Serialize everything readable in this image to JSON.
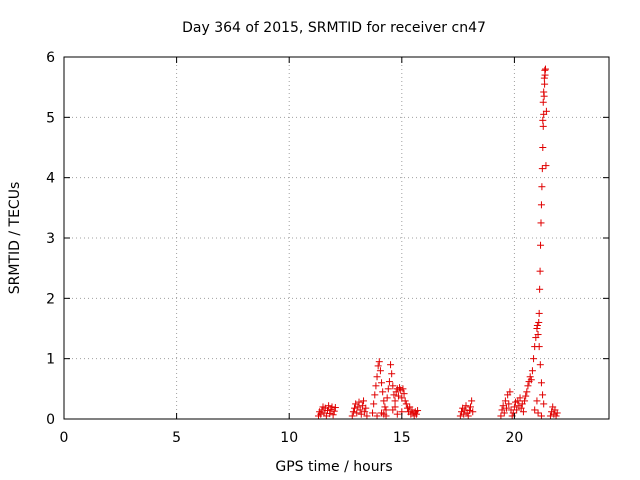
{
  "chart_data": {
    "type": "scatter",
    "title": "Day 364 of 2015, SRMTID for receiver cn47",
    "xlabel": "GPS time / hours",
    "ylabel": "SRMTID / TECUs",
    "xlim": [
      0,
      24.2
    ],
    "ylim": [
      0,
      6
    ],
    "xticks": [
      0,
      5,
      10,
      15,
      20
    ],
    "yticks": [
      0,
      1,
      2,
      3,
      4,
      5,
      6
    ],
    "grid": true,
    "marker": "+",
    "color": "#e00000",
    "series": [
      {
        "name": "SRMTID",
        "points": [
          [
            11.3,
            0.05
          ],
          [
            11.35,
            0.12
          ],
          [
            11.4,
            0.08
          ],
          [
            11.45,
            0.15
          ],
          [
            11.5,
            0.2
          ],
          [
            11.55,
            0.1
          ],
          [
            11.6,
            0.18
          ],
          [
            11.65,
            0.05
          ],
          [
            11.7,
            0.14
          ],
          [
            11.75,
            0.22
          ],
          [
            11.8,
            0.09
          ],
          [
            11.85,
            0.16
          ],
          [
            11.9,
            0.2
          ],
          [
            11.95,
            0.07
          ],
          [
            12.0,
            0.13
          ],
          [
            12.05,
            0.19
          ],
          [
            12.8,
            0.05
          ],
          [
            12.85,
            0.12
          ],
          [
            12.9,
            0.18
          ],
          [
            12.95,
            0.25
          ],
          [
            13.0,
            0.1
          ],
          [
            13.05,
            0.2
          ],
          [
            13.1,
            0.28
          ],
          [
            13.15,
            0.15
          ],
          [
            13.2,
            0.08
          ],
          [
            13.25,
            0.22
          ],
          [
            13.3,
            0.3
          ],
          [
            13.35,
            0.12
          ],
          [
            13.4,
            0.18
          ],
          [
            13.45,
            0.05
          ],
          [
            13.7,
            0.1
          ],
          [
            13.75,
            0.25
          ],
          [
            13.8,
            0.4
          ],
          [
            13.85,
            0.55
          ],
          [
            13.9,
            0.7
          ],
          [
            13.95,
            0.88
          ],
          [
            14.0,
            0.95
          ],
          [
            14.05,
            0.8
          ],
          [
            14.1,
            0.6
          ],
          [
            14.15,
            0.45
          ],
          [
            14.2,
            0.3
          ],
          [
            14.25,
            0.2
          ],
          [
            14.3,
            0.15
          ],
          [
            14.35,
            0.35
          ],
          [
            14.4,
            0.5
          ],
          [
            14.45,
            0.62
          ],
          [
            14.5,
            0.9
          ],
          [
            14.55,
            0.75
          ],
          [
            14.6,
            0.55
          ],
          [
            14.65,
            0.4
          ],
          [
            14.7,
            0.3
          ],
          [
            14.75,
            0.45
          ],
          [
            14.8,
            0.5
          ],
          [
            14.85,
            0.38
          ],
          [
            14.9,
            0.52
          ],
          [
            14.95,
            0.48
          ],
          [
            15.0,
            0.35
          ],
          [
            15.05,
            0.5
          ],
          [
            15.1,
            0.42
          ],
          [
            15.15,
            0.3
          ],
          [
            15.2,
            0.25
          ],
          [
            15.25,
            0.18
          ],
          [
            15.3,
            0.12
          ],
          [
            15.35,
            0.2
          ],
          [
            15.4,
            0.08
          ],
          [
            15.45,
            0.15
          ],
          [
            15.5,
            0.1
          ],
          [
            15.55,
            0.05
          ],
          [
            15.6,
            0.12
          ],
          [
            15.65,
            0.08
          ],
          [
            15.7,
            0.14
          ],
          [
            13.9,
            0.05
          ],
          [
            14.1,
            0.1
          ],
          [
            14.3,
            0.05
          ],
          [
            14.6,
            0.15
          ],
          [
            14.8,
            0.08
          ],
          [
            15.0,
            0.12
          ],
          [
            14.2,
            0.08
          ],
          [
            14.7,
            0.2
          ],
          [
            17.6,
            0.05
          ],
          [
            17.65,
            0.12
          ],
          [
            17.7,
            0.18
          ],
          [
            17.75,
            0.08
          ],
          [
            17.8,
            0.15
          ],
          [
            17.85,
            0.22
          ],
          [
            17.9,
            0.1
          ],
          [
            17.95,
            0.05
          ],
          [
            18.0,
            0.14
          ],
          [
            18.05,
            0.2
          ],
          [
            18.1,
            0.3
          ],
          [
            18.15,
            0.12
          ],
          [
            19.4,
            0.05
          ],
          [
            19.45,
            0.15
          ],
          [
            19.5,
            0.22
          ],
          [
            19.55,
            0.1
          ],
          [
            19.6,
            0.3
          ],
          [
            19.65,
            0.18
          ],
          [
            19.7,
            0.4
          ],
          [
            19.75,
            0.25
          ],
          [
            19.8,
            0.45
          ],
          [
            19.85,
            0.15
          ],
          [
            19.9,
            0.05
          ],
          [
            19.95,
            0.1
          ],
          [
            20.0,
            0.2
          ],
          [
            20.05,
            0.28
          ],
          [
            20.1,
            0.15
          ],
          [
            20.15,
            0.3
          ],
          [
            20.2,
            0.22
          ],
          [
            20.25,
            0.35
          ],
          [
            20.3,
            0.18
          ],
          [
            20.35,
            0.25
          ],
          [
            20.4,
            0.12
          ],
          [
            20.45,
            0.3
          ],
          [
            20.5,
            0.38
          ],
          [
            20.55,
            0.45
          ],
          [
            20.6,
            0.55
          ],
          [
            20.65,
            0.62
          ],
          [
            20.7,
            0.7
          ],
          [
            20.75,
            0.65
          ],
          [
            20.8,
            0.8
          ],
          [
            20.85,
            1.0
          ],
          [
            20.9,
            1.2
          ],
          [
            20.95,
            1.35
          ],
          [
            21.0,
            1.5
          ],
          [
            21.02,
            1.55
          ],
          [
            21.05,
            1.4
          ],
          [
            21.08,
            1.6
          ],
          [
            21.1,
            1.75
          ],
          [
            21.12,
            2.15
          ],
          [
            21.14,
            2.45
          ],
          [
            21.16,
            2.88
          ],
          [
            21.18,
            3.25
          ],
          [
            21.2,
            3.55
          ],
          [
            21.22,
            3.85
          ],
          [
            21.24,
            4.15
          ],
          [
            21.26,
            4.5
          ],
          [
            21.28,
            4.85
          ],
          [
            21.3,
            5.05
          ],
          [
            21.32,
            5.35
          ],
          [
            21.34,
            5.55
          ],
          [
            21.36,
            5.7
          ],
          [
            21.38,
            5.8
          ],
          [
            21.35,
            5.78
          ],
          [
            21.33,
            5.65
          ],
          [
            21.3,
            5.42
          ],
          [
            21.28,
            5.25
          ],
          [
            21.26,
            4.95
          ],
          [
            21.4,
            4.2
          ],
          [
            21.42,
            5.1
          ],
          [
            21.1,
            1.2
          ],
          [
            21.15,
            0.9
          ],
          [
            21.2,
            0.6
          ],
          [
            21.25,
            0.4
          ],
          [
            21.3,
            0.25
          ],
          [
            21.0,
            0.3
          ],
          [
            20.9,
            0.15
          ],
          [
            21.05,
            0.1
          ],
          [
            21.2,
            0.05
          ],
          [
            21.6,
            0.05
          ],
          [
            21.65,
            0.12
          ],
          [
            21.7,
            0.2
          ],
          [
            21.75,
            0.08
          ],
          [
            21.8,
            0.15
          ],
          [
            21.85,
            0.05
          ],
          [
            21.9,
            0.1
          ]
        ]
      }
    ]
  }
}
